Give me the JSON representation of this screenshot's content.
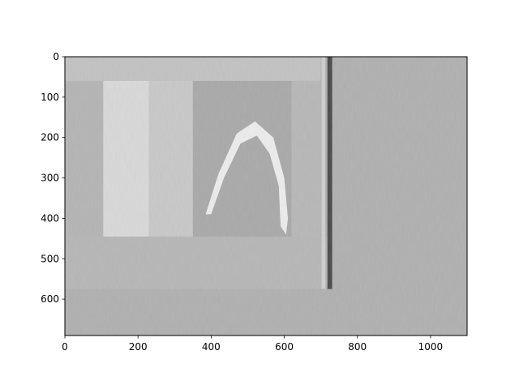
{
  "chart_data": {
    "type": "heatmap",
    "title": "",
    "xlabel": "",
    "ylabel": "",
    "xlim": [
      0,
      1100
    ],
    "ylim": [
      690,
      0
    ],
    "x_ticks": [
      0,
      200,
      400,
      600,
      800,
      1000
    ],
    "y_ticks": [
      0,
      100,
      200,
      300,
      400,
      500,
      600
    ],
    "grid": false,
    "colormap": "gray",
    "background_gray": "#b0b0b0",
    "regions": [
      {
        "name": "scan-upper-band",
        "x0": 0,
        "x1": 700,
        "y0": 0,
        "y1": 520,
        "color": "#c2c2c2"
      },
      {
        "name": "scan-left-margin",
        "x0": 0,
        "x1": 105,
        "y0": 60,
        "y1": 575,
        "color": "#b4b4b4"
      },
      {
        "name": "scan-right-band",
        "x0": 620,
        "x1": 700,
        "y0": 60,
        "y1": 575,
        "color": "#b7b7b7"
      },
      {
        "name": "scan-lower-strip",
        "x0": 0,
        "x1": 720,
        "y0": 445,
        "y1": 575,
        "color": "#b6b6b6"
      },
      {
        "name": "scan-main-panel",
        "x0": 105,
        "x1": 620,
        "y0": 60,
        "y1": 445,
        "color": "#b9b9b9"
      },
      {
        "name": "scan-bright-left",
        "x0": 105,
        "x1": 230,
        "y0": 60,
        "y1": 445,
        "color": "#d8d8d8"
      },
      {
        "name": "scan-mid-panel",
        "x0": 230,
        "x1": 350,
        "y0": 60,
        "y1": 445,
        "color": "#c8c8c8"
      },
      {
        "name": "scan-right-panel",
        "x0": 350,
        "x1": 620,
        "y0": 60,
        "y1": 445,
        "color": "#a9a9a9"
      },
      {
        "name": "dark-vertical-line",
        "x0": 718,
        "x1": 731,
        "y0": 0,
        "y1": 575,
        "color": "#4a4a4a"
      },
      {
        "name": "light-vertical-line",
        "x0": 702,
        "x1": 712,
        "y0": 0,
        "y1": 575,
        "color": "#cfcfcf"
      }
    ],
    "arc": {
      "outer": [
        [
          385,
          390
        ],
        [
          420,
          290
        ],
        [
          470,
          190
        ],
        [
          520,
          160
        ],
        [
          570,
          200
        ],
        [
          600,
          300
        ],
        [
          610,
          400
        ],
        [
          605,
          440
        ]
      ],
      "inner": [
        [
          400,
          390
        ],
        [
          435,
          300
        ],
        [
          480,
          215
        ],
        [
          525,
          195
        ],
        [
          560,
          240
        ],
        [
          585,
          320
        ],
        [
          590,
          420
        ]
      ]
    }
  }
}
